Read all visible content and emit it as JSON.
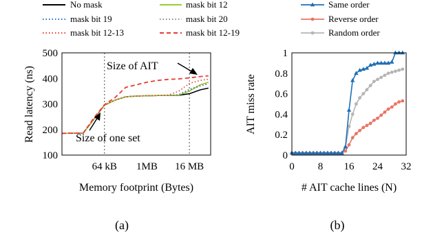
{
  "chart_data": [
    {
      "panel_label": "(a)",
      "type": "line",
      "xlabel": "Memory footprint (Bytes)",
      "ylabel": "Read latency (ns)",
      "x_scale": "log2",
      "x_unit": "bytes",
      "xlim": [
        4096,
        67108864
      ],
      "ylim": [
        100,
        500
      ],
      "xticks": [
        {
          "value": 65536,
          "label": "64 kB"
        },
        {
          "value": 1048576,
          "label": "1MB"
        },
        {
          "value": 16777216,
          "label": "16 MB"
        }
      ],
      "yticks": [
        100,
        200,
        300,
        400,
        500
      ],
      "vlines": [
        65536,
        16777216
      ],
      "legend_placement": "above",
      "annotations": [
        {
          "text": "Size of AIT",
          "target_x": 16777216,
          "target_y": 410
        },
        {
          "text": "Size of one set",
          "target_x": 65536,
          "target_y": 298
        }
      ],
      "series": [
        {
          "name": "No mask",
          "color": "#000000",
          "dash": "solid",
          "points": [
            [
              4096,
              185
            ],
            [
              16384,
              186
            ],
            [
              32768,
              240
            ],
            [
              65536,
              295
            ],
            [
              131072,
              315
            ],
            [
              262144,
              328
            ],
            [
              524288,
              331
            ],
            [
              1048576,
              332
            ],
            [
              2097152,
              333
            ],
            [
              4194304,
              333
            ],
            [
              8388608,
              334
            ],
            [
              16777216,
              340
            ],
            [
              33554432,
              355
            ],
            [
              58000000,
              362
            ]
          ]
        },
        {
          "name": "mask bit 12",
          "color": "#9ACD32",
          "dash": "solid",
          "points": [
            [
              4096,
              185
            ],
            [
              16384,
              186
            ],
            [
              32768,
              240
            ],
            [
              65536,
              295
            ],
            [
              131072,
              315
            ],
            [
              262144,
              328
            ],
            [
              524288,
              331
            ],
            [
              1048576,
              332
            ],
            [
              2097152,
              333
            ],
            [
              4194304,
              333
            ],
            [
              8388608,
              335
            ],
            [
              16777216,
              350
            ],
            [
              33554432,
              375
            ],
            [
              58000000,
              385
            ]
          ]
        },
        {
          "name": "mask bit 19",
          "color": "#1f6fbf",
          "dash": "dot",
          "points": [
            [
              4096,
              185
            ],
            [
              16384,
              186
            ],
            [
              32768,
              240
            ],
            [
              65536,
              295
            ],
            [
              131072,
              315
            ],
            [
              262144,
              328
            ],
            [
              524288,
              331
            ],
            [
              1048576,
              332
            ],
            [
              2097152,
              333
            ],
            [
              4194304,
              333
            ],
            [
              8388608,
              336
            ],
            [
              16777216,
              355
            ],
            [
              33554432,
              370
            ],
            [
              58000000,
              378
            ]
          ]
        },
        {
          "name": "mask bit 20",
          "color": "#888888",
          "dash": "dot",
          "points": [
            [
              4096,
              185
            ],
            [
              16384,
              186
            ],
            [
              32768,
              240
            ],
            [
              65536,
              295
            ],
            [
              131072,
              315
            ],
            [
              262144,
              328
            ],
            [
              524288,
              331
            ],
            [
              1048576,
              332
            ],
            [
              2097152,
              333
            ],
            [
              4194304,
              333
            ],
            [
              8388608,
              337
            ],
            [
              16777216,
              358
            ],
            [
              33554432,
              373
            ],
            [
              58000000,
              380
            ]
          ]
        },
        {
          "name": "mask bit 12-13",
          "color": "#e8392e",
          "dash": "dot",
          "points": [
            [
              4096,
              185
            ],
            [
              16384,
              186
            ],
            [
              32768,
              240
            ],
            [
              65536,
              295
            ],
            [
              131072,
              315
            ],
            [
              262144,
              328
            ],
            [
              524288,
              331
            ],
            [
              1048576,
              332
            ],
            [
              2097152,
              333
            ],
            [
              4194304,
              335
            ],
            [
              8388608,
              350
            ],
            [
              16777216,
              380
            ],
            [
              33554432,
              392
            ],
            [
              58000000,
              397
            ]
          ]
        },
        {
          "name": "mask bit 12-19",
          "color": "#e8392e",
          "dash": "dash",
          "points": [
            [
              4096,
              185
            ],
            [
              16384,
              186
            ],
            [
              32768,
              245
            ],
            [
              65536,
              297
            ],
            [
              131072,
              325
            ],
            [
              262144,
              365
            ],
            [
              524288,
              375
            ],
            [
              1048576,
              385
            ],
            [
              2097152,
              392
            ],
            [
              4194304,
              396
            ],
            [
              8388608,
              398
            ],
            [
              16777216,
              402
            ],
            [
              33554432,
              407
            ],
            [
              58000000,
              410
            ]
          ]
        }
      ]
    },
    {
      "panel_label": "(b)",
      "type": "line",
      "xlabel": "# AIT cache lines (N)",
      "ylabel": "AIT miss rate",
      "xlim": [
        0,
        32
      ],
      "ylim": [
        0,
        1
      ],
      "xticks": [
        0,
        8,
        16,
        24,
        32
      ],
      "yticks": [
        0,
        0.2,
        0.4,
        0.6,
        0.8,
        1
      ],
      "legend_placement": "above",
      "series": [
        {
          "name": "Same order",
          "color": "#1f6fb4",
          "marker": "triangle",
          "x": [
            0,
            1,
            2,
            3,
            4,
            5,
            6,
            7,
            8,
            9,
            10,
            11,
            12,
            13,
            14,
            15,
            16,
            17,
            18,
            19,
            20,
            21,
            22,
            23,
            24,
            25,
            26,
            27,
            28,
            29,
            30,
            31
          ],
          "y": [
            0.02,
            0.02,
            0.02,
            0.02,
            0.02,
            0.02,
            0.02,
            0.02,
            0.02,
            0.02,
            0.02,
            0.02,
            0.02,
            0.02,
            0.02,
            0.08,
            0.44,
            0.73,
            0.8,
            0.83,
            0.84,
            0.85,
            0.88,
            0.89,
            0.9,
            0.9,
            0.9,
            0.9,
            0.91,
            1.0,
            1.0,
            1.0
          ]
        },
        {
          "name": "Reverse order",
          "color": "#ea7565",
          "marker": "circle",
          "x": [
            0,
            1,
            2,
            3,
            4,
            5,
            6,
            7,
            8,
            9,
            10,
            11,
            12,
            13,
            14,
            15,
            16,
            17,
            18,
            19,
            20,
            21,
            22,
            23,
            24,
            25,
            26,
            27,
            28,
            29,
            30,
            31
          ],
          "y": [
            0.02,
            0.02,
            0.02,
            0.02,
            0.02,
            0.02,
            0.02,
            0.02,
            0.02,
            0.02,
            0.02,
            0.02,
            0.02,
            0.02,
            0.02,
            0.04,
            0.1,
            0.17,
            0.21,
            0.24,
            0.27,
            0.29,
            0.31,
            0.34,
            0.36,
            0.39,
            0.42,
            0.45,
            0.47,
            0.5,
            0.52,
            0.53
          ]
        },
        {
          "name": "Random order",
          "color": "#b5b5b5",
          "marker": "circle",
          "x": [
            0,
            1,
            2,
            3,
            4,
            5,
            6,
            7,
            8,
            9,
            10,
            11,
            12,
            13,
            14,
            15,
            16,
            17,
            18,
            19,
            20,
            21,
            22,
            23,
            24,
            25,
            26,
            27,
            28,
            29,
            30,
            31
          ],
          "y": [
            0.02,
            0.02,
            0.02,
            0.02,
            0.02,
            0.02,
            0.02,
            0.02,
            0.02,
            0.02,
            0.02,
            0.02,
            0.02,
            0.02,
            0.02,
            0.08,
            0.28,
            0.4,
            0.5,
            0.56,
            0.6,
            0.64,
            0.68,
            0.72,
            0.74,
            0.76,
            0.78,
            0.8,
            0.81,
            0.82,
            0.83,
            0.84
          ]
        }
      ]
    }
  ]
}
